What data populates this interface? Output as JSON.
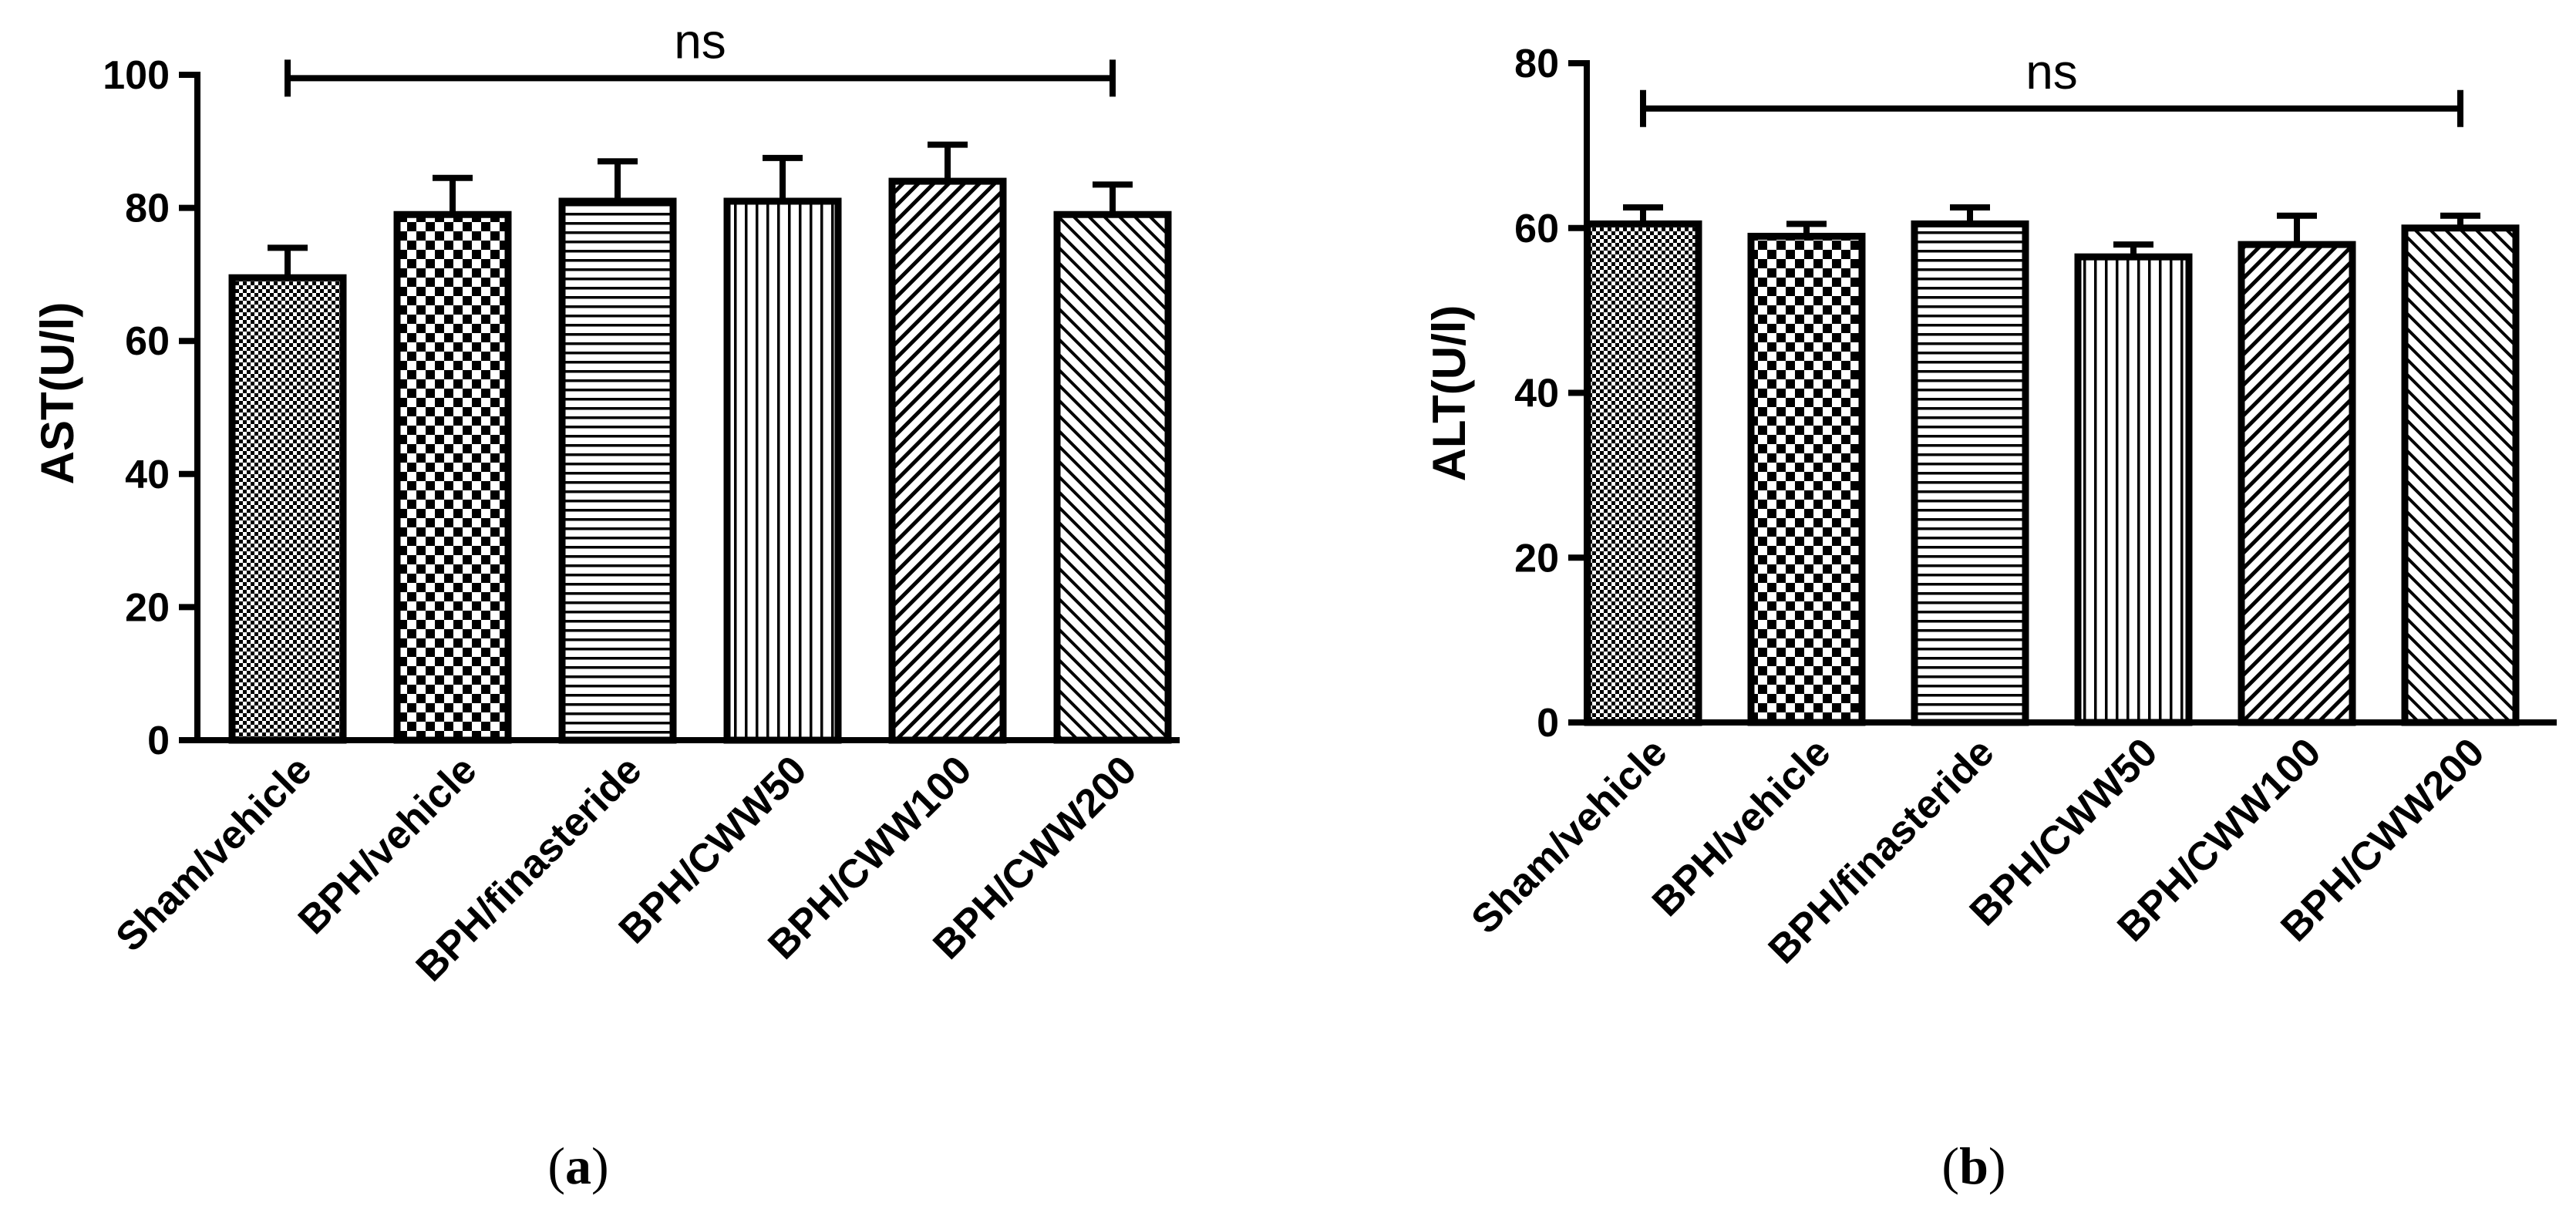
{
  "chart_data": [
    {
      "type": "bar",
      "panel": "a",
      "panel_label": {
        "open": "(",
        "letter": "a",
        "close": ")"
      },
      "ylabel": "AST(U/l)",
      "xlabel": "",
      "ylim": [
        0,
        100
      ],
      "yticks": [
        0,
        20,
        40,
        60,
        80,
        100
      ],
      "categories": [
        "Sham/vehicle",
        "BPH/vehicle",
        "BPH/finasteride",
        "BPH/CWW50",
        "BPH/CWW100",
        "BPH/CWW200"
      ],
      "patterns": [
        "dots",
        "checker",
        "hlines",
        "vlines",
        "diag-right",
        "diag-left"
      ],
      "values": [
        69.5,
        79,
        81,
        81,
        84,
        79
      ],
      "errors": [
        4.5,
        5.5,
        6,
        6.5,
        5.5,
        4.5
      ],
      "significance": {
        "label": "ns",
        "y": 99.5,
        "from": 0,
        "to": 5
      }
    },
    {
      "type": "bar",
      "panel": "b",
      "panel_label": {
        "open": "(",
        "letter": "b",
        "close": ")"
      },
      "ylabel": "ALT(U/l)",
      "xlabel": "",
      "ylim": [
        0,
        80
      ],
      "yticks": [
        0,
        20,
        40,
        60,
        80
      ],
      "categories": [
        "Sham/vehicle",
        "BPH/vehicle",
        "BPH/finasteride",
        "BPH/CWW50",
        "BPH/CWW100",
        "BPH/CWW200"
      ],
      "patterns": [
        "dots",
        "checker",
        "hlines",
        "vlines",
        "diag-right",
        "diag-left"
      ],
      "values": [
        60.5,
        59,
        60.5,
        56.5,
        58,
        60
      ],
      "errors": [
        2,
        1.5,
        2,
        1.5,
        3.5,
        1.5
      ],
      "significance": {
        "label": "ns",
        "y": 74.5,
        "from": 0,
        "to": 5
      }
    }
  ]
}
